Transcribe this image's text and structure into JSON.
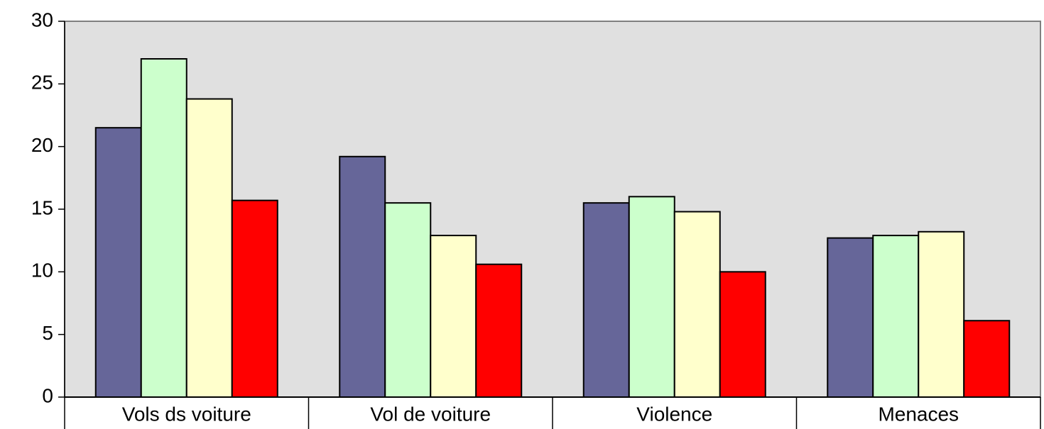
{
  "chart_data": {
    "type": "bar",
    "categories": [
      "Vols ds voiture",
      "Vol de voiture",
      "Violence",
      "Menaces"
    ],
    "series": [
      {
        "color": "#666699",
        "values": [
          21.5,
          19.2,
          15.5,
          12.7
        ]
      },
      {
        "color": "#ccffcc",
        "values": [
          27,
          15.5,
          16.0,
          12.9
        ]
      },
      {
        "color": "#ffffcc",
        "values": [
          23.8,
          12.9,
          14.8,
          13.2
        ]
      },
      {
        "color": "#ff0000",
        "values": [
          15.7,
          10.6,
          10.0,
          6.1
        ]
      }
    ],
    "ylim": [
      0,
      30
    ],
    "yticks": [
      0,
      5,
      10,
      15,
      20,
      25,
      30
    ]
  }
}
